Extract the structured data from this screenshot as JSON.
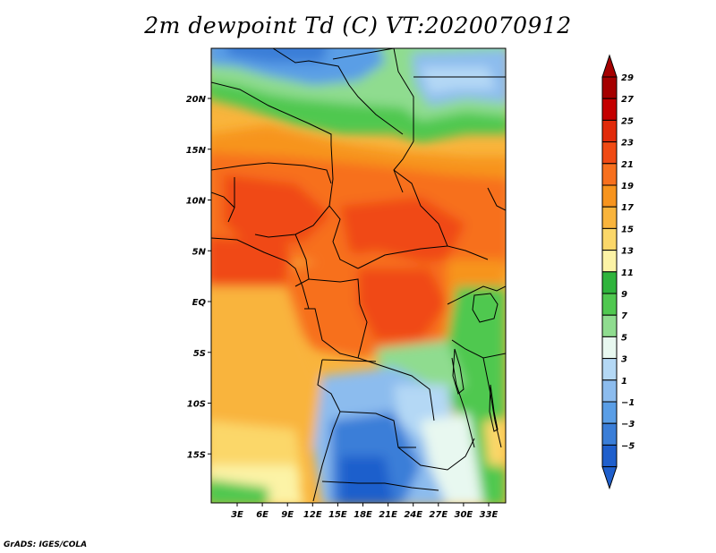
{
  "title": "2m dewpoint Td (C) VT:2020070912",
  "credit": "GrADS: IGES/COLA",
  "map": {
    "lat_ticks": [
      {
        "label": "20N",
        "lat": 20
      },
      {
        "label": "15N",
        "lat": 15
      },
      {
        "label": "10N",
        "lat": 10
      },
      {
        "label": "5N",
        "lat": 5
      },
      {
        "label": "EQ",
        "lat": 0
      },
      {
        "label": "5S",
        "lat": -5
      },
      {
        "label": "10S",
        "lat": -10
      },
      {
        "label": "15S",
        "lat": -15
      }
    ],
    "lon_ticks": [
      {
        "label": "3E",
        "lon": 3
      },
      {
        "label": "6E",
        "lon": 6
      },
      {
        "label": "9E",
        "lon": 9
      },
      {
        "label": "12E",
        "lon": 12
      },
      {
        "label": "15E",
        "lon": 15
      },
      {
        "label": "18E",
        "lon": 18
      },
      {
        "label": "21E",
        "lon": 21
      },
      {
        "label": "24E",
        "lon": 24
      },
      {
        "label": "27E",
        "lon": 27
      },
      {
        "label": "30E",
        "lon": 30
      },
      {
        "label": "33E",
        "lon": 33
      }
    ]
  },
  "colorbar": {
    "labels": [
      "29",
      "27",
      "25",
      "23",
      "21",
      "19",
      "17",
      "15",
      "13",
      "11",
      "9",
      "7",
      "5",
      "3",
      "1",
      "−1",
      "−3",
      "−5"
    ],
    "colors": [
      "#a50000",
      "#c40000",
      "#e12a0a",
      "#f04a14",
      "#f7701e",
      "#f7941e",
      "#f9b43c",
      "#fbd769",
      "#fcf3a6",
      "#2fb43c",
      "#50c850",
      "#8fdc8f",
      "#e8f8f0",
      "#b4d8f5",
      "#8cbcee",
      "#5a9ee6",
      "#3a7ed8",
      "#1f5fcc"
    ]
  }
}
